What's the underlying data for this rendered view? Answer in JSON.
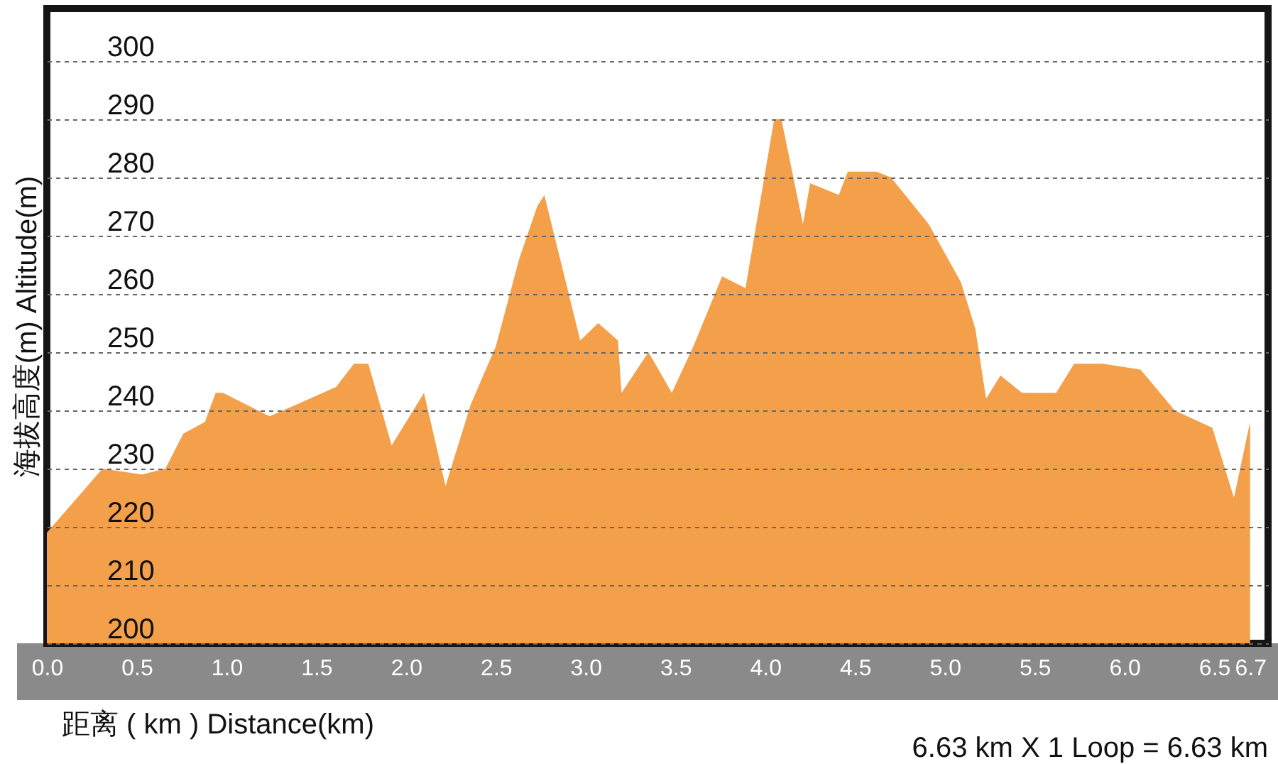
{
  "chart_data": {
    "type": "area",
    "ylabel": "海拔高度(m)   Altitude(m)",
    "xlabel": "距离 ( km )    Distance(km)",
    "annotations": [
      "6.63 km X 1 Loop = 6.63 km"
    ],
    "x": [
      0,
      0.31,
      0.53,
      0.66,
      0.76,
      0.88,
      0.94,
      0.98,
      1.24,
      1.39,
      1.61,
      1.71,
      1.79,
      1.92,
      2.1,
      2.22,
      2.36,
      2.5,
      2.63,
      2.73,
      2.77,
      2.97,
      3.07,
      3.18,
      3.2,
      3.35,
      3.48,
      3.6,
      3.76,
      3.89,
      4.05,
      4.09,
      4.21,
      4.25,
      4.41,
      4.46,
      4.62,
      4.7,
      4.91,
      5.09,
      5.17,
      5.23,
      5.31,
      5.43,
      5.62,
      5.72,
      5.88,
      6.09,
      6.28,
      6.49,
      6.61,
      6.7
    ],
    "series": [
      {
        "color": "#f4a04b",
        "values": [
          219,
          230,
          229,
          230,
          236,
          238,
          243,
          243,
          239,
          241,
          244,
          248,
          248,
          234,
          243,
          227,
          241,
          251,
          266,
          275,
          277,
          252,
          255,
          252,
          243,
          250,
          243,
          251,
          263,
          261,
          290,
          290,
          272,
          279,
          277,
          281,
          281,
          280,
          272,
          262,
          254,
          242,
          246,
          243,
          243,
          248,
          248,
          247,
          240,
          237,
          225,
          238
        ]
      }
    ],
    "xlim": [
      0,
      6.8
    ],
    "ylim": [
      200,
      309
    ],
    "xticks": [
      {
        "value": 0,
        "label": "0.0"
      },
      0.5,
      {
        "value": 1,
        "label": "1.0"
      },
      1.5,
      {
        "value": 2,
        "label": "2.0"
      },
      2.5,
      {
        "value": 3,
        "label": "3.0"
      },
      3.5,
      {
        "value": 4,
        "label": "4.0"
      },
      4.5,
      {
        "value": 5,
        "label": "5.0"
      },
      5.5,
      {
        "value": 6,
        "label": "6.0"
      },
      6.5,
      6.7
    ],
    "yticks": [
      200,
      210,
      220,
      230,
      240,
      250,
      260,
      270,
      280,
      290,
      300
    ],
    "grid": "y"
  }
}
